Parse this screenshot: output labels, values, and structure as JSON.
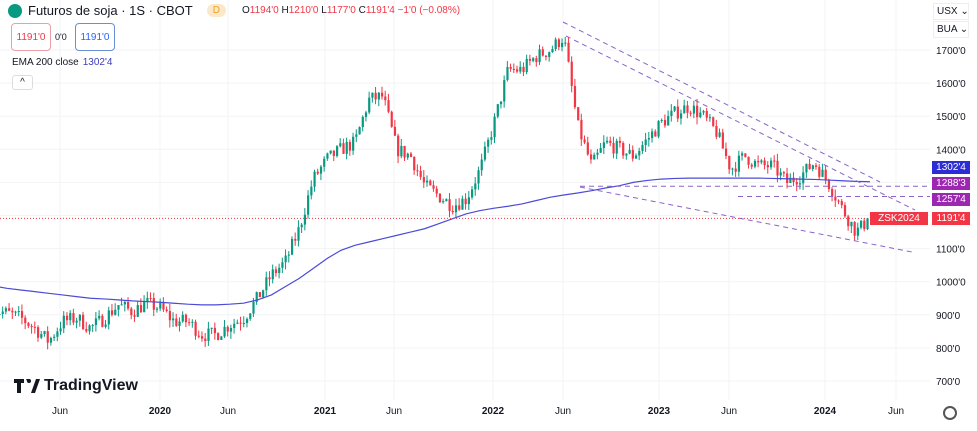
{
  "header": {
    "symbol": "Futuros de soja · 1S · CBOT",
    "pill": "D",
    "open_label": "O",
    "open": "1194'0",
    "high_label": "H",
    "high": "1210'0",
    "low_label": "L",
    "low": "1177'0",
    "close_label": "C",
    "close": "1191'4",
    "change": "−1'0 (−0.08%)"
  },
  "bid": "1191'0",
  "spread": "0'0",
  "ask": "1191'0",
  "indicator": {
    "name": "EMA 200 close",
    "value": "1302'4"
  },
  "collapse": "^",
  "axis_buttons": {
    "currency": "USX ⌄",
    "unit": "BUA ⌄"
  },
  "brand": "TradingView",
  "colors": {
    "up": "#089981",
    "down": "#f23645",
    "ema": "#4b4bd6",
    "drawing": "#8a63c9"
  },
  "chart_data": {
    "type": "candlestick",
    "interval": "weekly",
    "y_ticks": [
      "1700'0",
      "1600'0",
      "1500'0",
      "1400'0",
      "1100'0",
      "1000'0",
      "900'0",
      "800'0",
      "700'0"
    ],
    "ylim": [
      650,
      1780
    ],
    "x_ticks": [
      "Jun",
      "2020",
      "Jun",
      "2021",
      "Jun",
      "2022",
      "Jun",
      "2023",
      "Jun",
      "2024",
      "Jun"
    ],
    "monthly_closes_from_2019_01": [
      915,
      905,
      890,
      860,
      820,
      880,
      890,
      860,
      890,
      930,
      910,
      935,
      920,
      880,
      880,
      840,
      840,
      870,
      890,
      950,
      1020,
      1060,
      1160,
      1310,
      1370,
      1400,
      1420,
      1550,
      1560,
      1400,
      1380,
      1290,
      1260,
      1230,
      1250,
      1340,
      1480,
      1640,
      1640,
      1680,
      1700,
      1740,
      1470,
      1350,
      1420,
      1400,
      1380,
      1430,
      1480,
      1510,
      1530,
      1500,
      1450,
      1340,
      1380,
      1350,
      1350,
      1300,
      1320,
      1360,
      1300,
      1220,
      1150,
      1191
    ],
    "ema200_monthly_from_2019_01": [
      987,
      980,
      975,
      970,
      965,
      960,
      955,
      950,
      948,
      945,
      942,
      940,
      938,
      935,
      932,
      930,
      930,
      932,
      935,
      945,
      960,
      985,
      1010,
      1040,
      1070,
      1095,
      1110,
      1120,
      1130,
      1140,
      1150,
      1160,
      1175,
      1190,
      1205,
      1215,
      1222,
      1228,
      1235,
      1245,
      1255,
      1262,
      1268,
      1275,
      1283,
      1290,
      1300,
      1306,
      1310,
      1312,
      1313,
      1313,
      1313,
      1313,
      1313,
      1313,
      1312,
      1311,
      1310,
      1309,
      1307,
      1305,
      1303,
      1302
    ],
    "price_labels": [
      {
        "text": "1302'4",
        "color": "#2d2dd6"
      },
      {
        "text": "1288'3",
        "color": "#9c27b0"
      },
      {
        "text": "1257'4",
        "color": "#9c27b0"
      },
      {
        "text": "1191'4",
        "color": "#f23645"
      }
    ],
    "symbol_label": "ZSK2024",
    "horizontal_levels": [
      1288.4,
      1257.5
    ],
    "last_price": 1191.5
  }
}
